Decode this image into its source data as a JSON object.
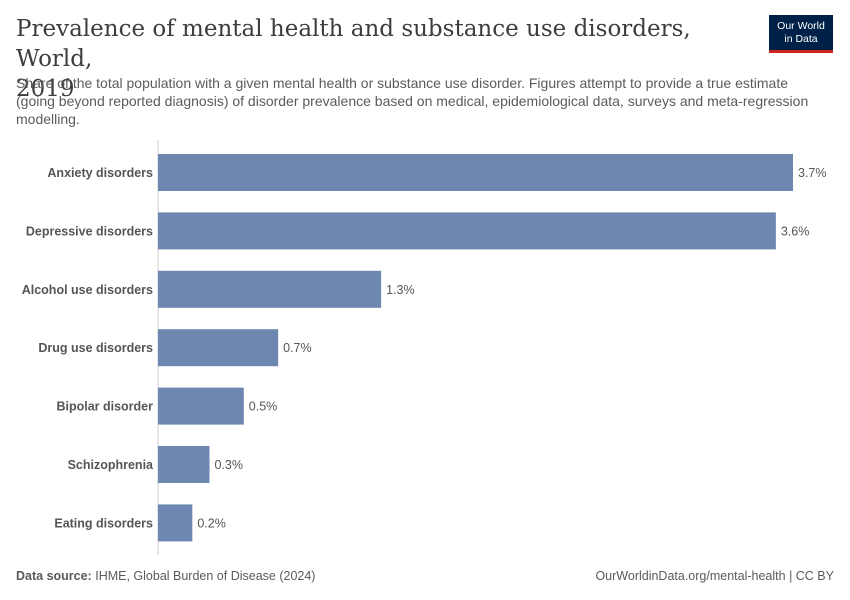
{
  "header": {
    "title_line1": "Prevalence of mental health and substance use disorders, World,",
    "title_line2": "2019",
    "subtitle": "Share of the total population with a given mental health or substance use disorder. Figures attempt to provide a true estimate (going beyond reported diagnosis) of disorder prevalence based on medical, epidemiological data, surveys and meta-regression modelling."
  },
  "logo": {
    "line1": "Our World",
    "line2": "in Data"
  },
  "footer": {
    "source_label": "Data source:",
    "source_text": "IHME, Global Burden of Disease (2024)",
    "url": "OurWorldinData.org/mental-health | CC BY"
  },
  "colors": {
    "bar": "#6d87b0",
    "axis": "#cccccc",
    "logo_bg": "#002147",
    "logo_accent": "#ce261e"
  },
  "chart_data": {
    "type": "bar",
    "orientation": "horizontal",
    "categories": [
      "Anxiety disorders",
      "Depressive disorders",
      "Alcohol use disorders",
      "Drug use disorders",
      "Bipolar disorder",
      "Schizophrenia",
      "Eating disorders"
    ],
    "values": [
      3.7,
      3.6,
      1.3,
      0.7,
      0.5,
      0.3,
      0.2
    ],
    "value_labels": [
      "3.7%",
      "3.6%",
      "1.3%",
      "0.7%",
      "0.5%",
      "0.3%",
      "0.2%"
    ],
    "unit": "%",
    "xlim": [
      0,
      3.7
    ],
    "grid": false
  }
}
